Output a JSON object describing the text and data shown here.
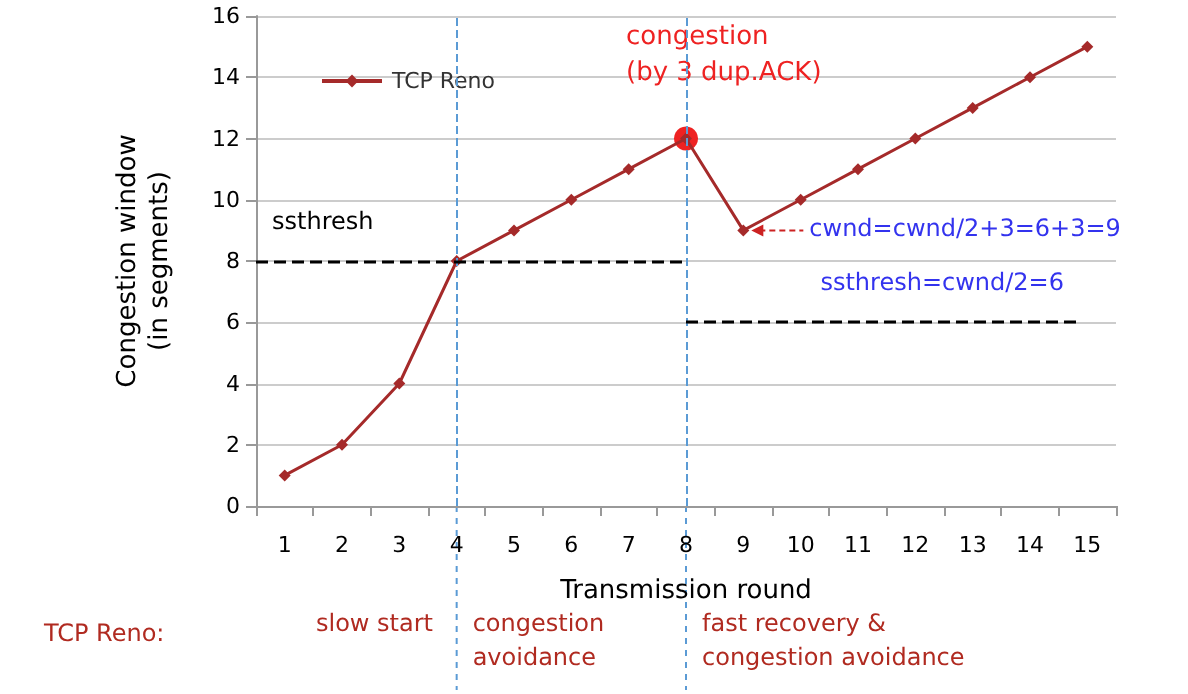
{
  "chart_data": {
    "type": "line",
    "xlabel": "Transmission round",
    "ylabel": "Congestion window\n(in segments)",
    "categories": [
      "1",
      "2",
      "3",
      "4",
      "5",
      "6",
      "7",
      "8",
      "9",
      "10",
      "11",
      "12",
      "13",
      "14",
      "15"
    ],
    "series": [
      {
        "name": "TCP Reno",
        "color": "#a52a2a",
        "values": [
          1,
          2,
          4,
          8,
          9,
          10,
          11,
          12,
          9,
          10,
          11,
          12,
          13,
          14,
          15
        ]
      }
    ],
    "ylim": [
      0,
      16
    ],
    "yticks": [
      0,
      2,
      4,
      6,
      8,
      10,
      12,
      14,
      16
    ],
    "grid": "y",
    "legend": "top left",
    "marker": "diamond",
    "line_style": "solid",
    "ref_lines": [
      {
        "axis": "x",
        "value": "4",
        "color": "#5b9bd5",
        "line_style": "dashed"
      },
      {
        "axis": "x",
        "value": "8",
        "color": "#5b9bd5",
        "line_style": "dashed"
      },
      {
        "axis": "y",
        "value": 8,
        "label": "ssthresh",
        "color": "#000000",
        "line_style": "dashed"
      },
      {
        "axis": "y",
        "value": 6,
        "label": "ssthresh=cwnd/2=6",
        "color": "#000000",
        "line_style": "dashed"
      }
    ],
    "annotations": [
      {
        "text": "congestion\n(by 3 dup.ACK)",
        "x": "8",
        "y": 12
      },
      {
        "text": "cwnd=cwnd/2+3=6+3=9",
        "x": "9",
        "y": 9
      },
      "TCP Reno:",
      "slow start",
      "congestion\navoidance",
      "fast recovery &\ncongestion avoidance"
    ]
  }
}
